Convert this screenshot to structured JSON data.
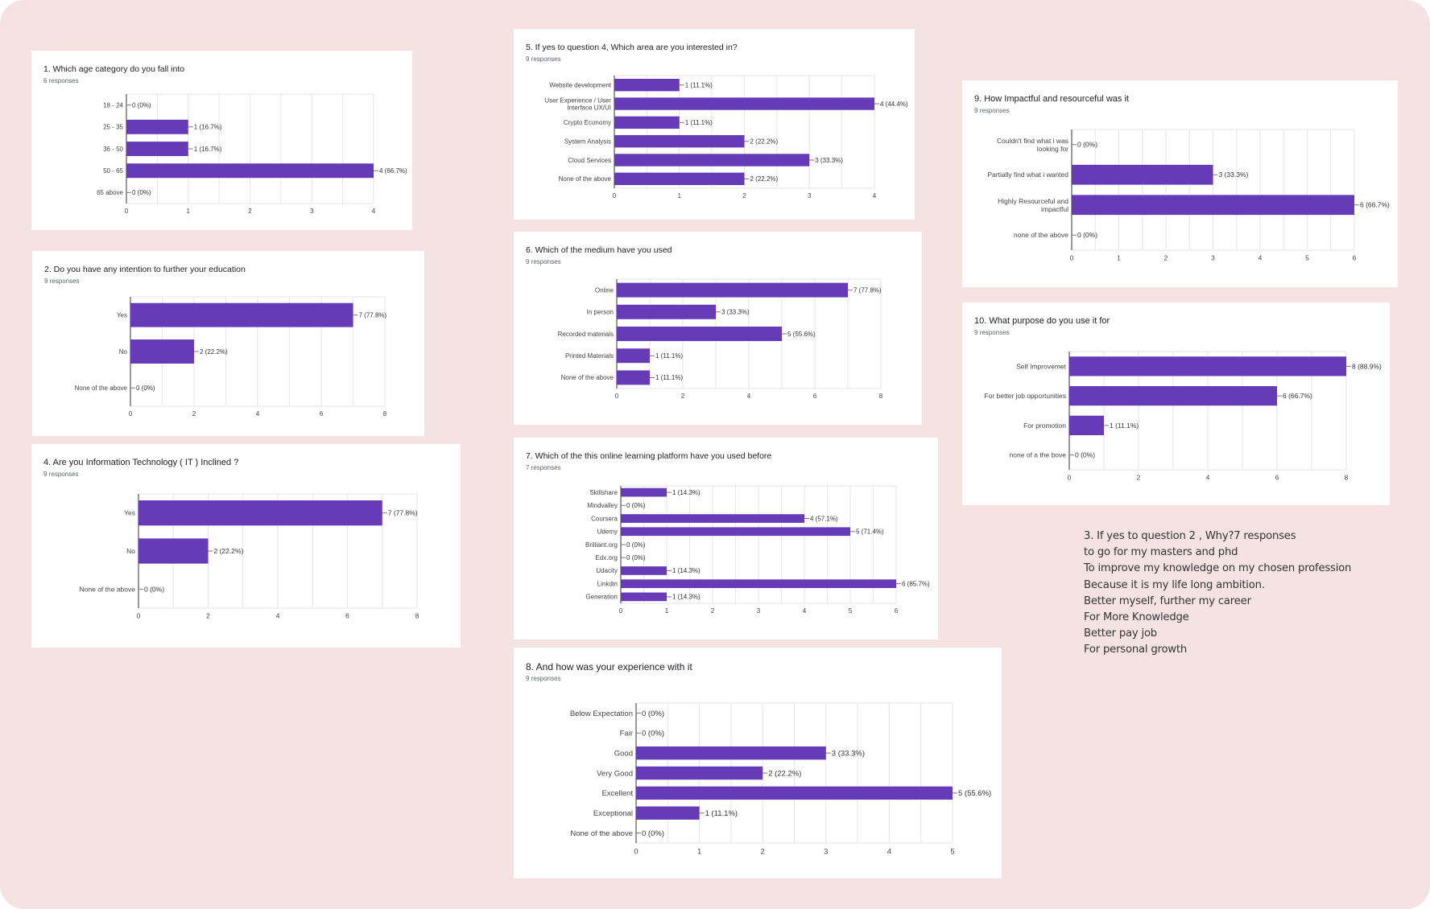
{
  "chart_data": [
    {
      "id": "q1",
      "type": "bar",
      "orientation": "horizontal",
      "title": "1. Which age category do you fall into",
      "subtitle": "6 responses",
      "categories": [
        "18 - 24",
        "25 - 35",
        "36 - 50",
        "50 - 65",
        "65 above"
      ],
      "values": [
        0,
        1,
        1,
        4,
        0
      ],
      "labels": [
        "0 (0%)",
        "1 (16.7%)",
        "1 (16.7%)",
        "4 (66.7%)",
        "0 (0%)"
      ],
      "xlim": [
        0,
        4
      ],
      "xticks": [
        0,
        1,
        2,
        3,
        4
      ],
      "color": "#673ab7",
      "grid": true
    },
    {
      "id": "q2",
      "type": "bar",
      "orientation": "horizontal",
      "title": "2. Do you have any intention to further your education",
      "subtitle": "9 responses",
      "categories": [
        "Yes",
        "No",
        "None of the above"
      ],
      "values": [
        7,
        2,
        0
      ],
      "labels": [
        "7 (77.8%)",
        "2 (22.2%)",
        "0 (0%)"
      ],
      "xlim": [
        0,
        8
      ],
      "xticks": [
        0,
        2,
        4,
        6,
        8
      ],
      "color": "#673ab7",
      "grid": true
    },
    {
      "id": "q4",
      "type": "bar",
      "orientation": "horizontal",
      "title": "4. Are you Information Technology ( IT ) Inclined ?",
      "subtitle": "9 responses",
      "categories": [
        "Yes",
        "No",
        "None of the above"
      ],
      "values": [
        7,
        2,
        0
      ],
      "labels": [
        "7 (77.8%)",
        "2 (22.2%)",
        "0 (0%)"
      ],
      "xlim": [
        0,
        8
      ],
      "xticks": [
        0,
        2,
        4,
        6,
        8
      ],
      "color": "#673ab7",
      "grid": true
    },
    {
      "id": "q5",
      "type": "bar",
      "orientation": "horizontal",
      "title": "5. If yes to question 4,  Which area are you interested in?",
      "subtitle": "9 responses",
      "categories": [
        "Website development",
        "User Experience / User Interface UX/UI",
        "Crypto Economy",
        "System Analysis",
        "Cloud Services",
        "None of the above"
      ],
      "values": [
        1,
        4,
        1,
        2,
        3,
        2
      ],
      "labels": [
        "1 (11.1%)",
        "4 (44.4%)",
        "1 (11.1%)",
        "2 (22.2%)",
        "3 (33.3%)",
        "2 (22.2%)"
      ],
      "xlim": [
        0,
        4
      ],
      "xticks": [
        0,
        1,
        2,
        3,
        4
      ],
      "color": "#673ab7",
      "grid": true
    },
    {
      "id": "q6",
      "type": "bar",
      "orientation": "horizontal",
      "title": "6. Which of the medium have you used",
      "subtitle": "9 responses",
      "categories": [
        "Online",
        "In person",
        "Recorded materials",
        "Printed Materials",
        "None of the above"
      ],
      "values": [
        7,
        3,
        5,
        1,
        1
      ],
      "labels": [
        "7 (77.8%)",
        "3 (33.3%)",
        "5 (55.6%)",
        "1 (11.1%)",
        "1 (11.1%)"
      ],
      "xlim": [
        0,
        8
      ],
      "xticks": [
        0,
        2,
        4,
        6,
        8
      ],
      "color": "#673ab7",
      "grid": true
    },
    {
      "id": "q7",
      "type": "bar",
      "orientation": "horizontal",
      "title": "7. Which of the this online learning platform have you used before",
      "subtitle": "7 responses",
      "categories": [
        "Skillshare",
        "Mindvalley",
        "Coursera",
        "Udemy",
        "Brilliant.org",
        "Edx.org",
        "Udacity",
        "Linkdin",
        "Generation"
      ],
      "values": [
        1,
        0,
        4,
        5,
        0,
        0,
        1,
        6,
        1
      ],
      "labels": [
        "1 (14.3%)",
        "0 (0%)",
        "4 (57.1%)",
        "5 (71.4%)",
        "0 (0%)",
        "0 (0%)",
        "1 (14.3%)",
        "6 (85.7%)",
        "1 (14.3%)"
      ],
      "xlim": [
        0,
        6
      ],
      "xticks": [
        0,
        1,
        2,
        3,
        4,
        5,
        6
      ],
      "color": "#673ab7",
      "grid": true
    },
    {
      "id": "q8",
      "type": "bar",
      "orientation": "horizontal",
      "title": "8. And how was your experience with it",
      "subtitle": "9 responses",
      "categories": [
        "Below Expectation",
        "Fair",
        "Good",
        "Very Good",
        "Excellent",
        "Exceptional",
        "None of the above"
      ],
      "values": [
        0,
        0,
        3,
        2,
        5,
        1,
        0
      ],
      "labels": [
        "0 (0%)",
        "0 (0%)",
        "3 (33.3%)",
        "2 (22.2%)",
        "5 (55.6%)",
        "1 (11.1%)",
        "0 (0%)"
      ],
      "xlim": [
        0,
        5
      ],
      "xticks": [
        0,
        1,
        2,
        3,
        4,
        5
      ],
      "color": "#673ab7",
      "grid": true
    },
    {
      "id": "q9",
      "type": "bar",
      "orientation": "horizontal",
      "title": "9. How Impactful and resourceful was it",
      "subtitle": "9 responses",
      "categories": [
        "Couldn't find what i was looking for",
        "Partially find what i wanted",
        "Highly Resourceful and impactful",
        "none of the above"
      ],
      "values": [
        0,
        3,
        6,
        0
      ],
      "labels": [
        "0 (0%)",
        "3 (33.3%)",
        "6 (66.7%)",
        "0 (0%)"
      ],
      "xlim": [
        0,
        6
      ],
      "xticks": [
        0,
        1,
        2,
        3,
        4,
        5,
        6
      ],
      "color": "#673ab7",
      "grid": true
    },
    {
      "id": "q10",
      "type": "bar",
      "orientation": "horizontal",
      "title": "10. What purpose do you use it for",
      "subtitle": "9 responses",
      "categories": [
        "Self Improvemet",
        "For better job opportunities",
        "For promotion",
        "none of a the bove"
      ],
      "values": [
        8,
        6,
        1,
        0
      ],
      "labels": [
        "8 (88.9%)",
        "6 (66.7%)",
        "1 (11.1%)",
        "0 (0%)"
      ],
      "xlim": [
        0,
        8
      ],
      "xticks": [
        0,
        2,
        4,
        6,
        8
      ],
      "color": "#673ab7",
      "grid": true
    }
  ],
  "notes": {
    "heading": "3. If yes to question 2 , Why?7 responses",
    "lines": [
      "to go for my masters and phd",
      "To improve my knowledge on my chosen profession",
      "Because it is my life long ambition.",
      "Better myself, further my career",
      "For More Knowledge",
      "Better pay job",
      "For personal growth"
    ]
  },
  "colors": {
    "background": "#f5e3e4",
    "card": "#ffffff",
    "bar": "#673ab7"
  }
}
